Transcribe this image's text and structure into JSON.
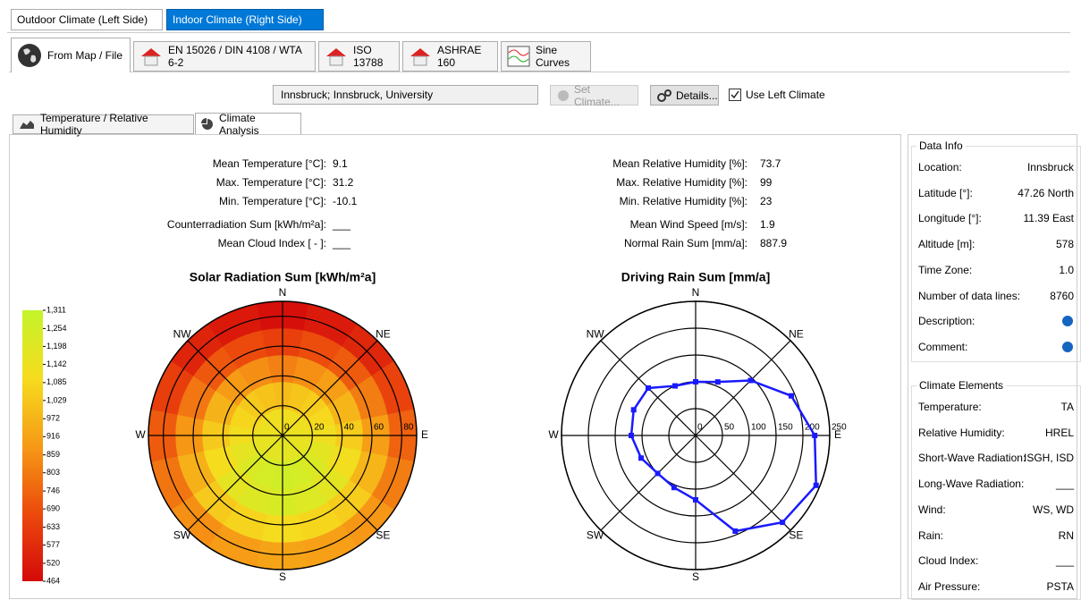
{
  "tabs_top": [
    "Outdoor Climate (Left Side)",
    "Indoor Climate (Right Side)"
  ],
  "tabs_source": [
    "From Map / File",
    "EN 15026 / DIN 4108 / WTA 6-2",
    "ISO 13788",
    "ASHRAE 160",
    "Sine Curves"
  ],
  "location_field": "Innsbruck; Innsbruck, University",
  "buttons": [
    "Set Climate...",
    "Details..."
  ],
  "checkbox": "Use Left Climate",
  "tabs_view": [
    "Temperature / Relative Humidity",
    "Climate Analysis"
  ],
  "stats_left": [
    {
      "label": "Mean Temperature [°C]:",
      "value": 9.1
    },
    {
      "label": "Max. Temperature [°C]:",
      "value": 31.2
    },
    {
      "label": "Min. Temperature [°C]:",
      "value": -10.1
    },
    {
      "label": "Counterradiation Sum [kWh/m²a]:",
      "value": "___"
    },
    {
      "label": "Mean Cloud Index [ - ]:",
      "value": "___"
    }
  ],
  "stats_right": [
    {
      "label": "Mean Relative Humidity [%]:",
      "value": 73.7
    },
    {
      "label": "Max. Relative Humidity [%]:",
      "value": 99
    },
    {
      "label": "Min. Relative Humidity [%]:",
      "value": 23
    },
    {
      "label": "Mean Wind Speed [m/s]:",
      "value": 1.9
    },
    {
      "label": "Normal Rain Sum [mm/a]:",
      "value": 887.9
    }
  ],
  "chart_data": [
    {
      "type": "polar_heatmap",
      "title": "Solar Radiation Sum [kWh/m²a]",
      "direction_labels": [
        "N",
        "NE",
        "E",
        "SE",
        "S",
        "SW",
        "W",
        "NW"
      ],
      "rlim": [
        0,
        90
      ],
      "rticks": [
        0,
        20,
        40,
        60,
        80
      ],
      "rbins": [
        0,
        18,
        36,
        54,
        72,
        90
      ],
      "values": [
        [
          1120,
          1125,
          1130,
          1140,
          1150,
          1160,
          1170,
          1180,
          1185,
          1180,
          1170,
          1160,
          1150,
          1140,
          1130,
          1125
        ],
        [
          1000,
          1025,
          1050,
          1090,
          1130,
          1175,
          1220,
          1245,
          1260,
          1245,
          1220,
          1170,
          1120,
          1080,
          1040,
          1020
        ],
        [
          820,
          860,
          900,
          975,
          1050,
          1115,
          1180,
          1210,
          1230,
          1205,
          1170,
          1105,
          1040,
          965,
          890,
          855
        ],
        [
          640,
          680,
          720,
          810,
          900,
          975,
          1050,
          1080,
          1100,
          1075,
          1040,
          960,
          880,
          795,
          710,
          675
        ],
        [
          480,
          520,
          560,
          650,
          740,
          810,
          880,
          905,
          920,
          895,
          860,
          790,
          720,
          635,
          550,
          515
        ]
      ],
      "clim": [
        464,
        1311
      ],
      "colors": [
        "#d40a0a",
        "#ec4a0c",
        "#f69a16",
        "#f6dc1e",
        "#c4f42a"
      ],
      "colorbar_ticks": [
        {
          "value": 1311,
          "label": "1,311"
        },
        {
          "value": 1254,
          "label": "1,254"
        },
        {
          "value": 1198,
          "label": "1,198"
        },
        {
          "value": 1142,
          "label": "1,142"
        },
        {
          "value": 1085,
          "label": "1,085"
        },
        {
          "value": 1029,
          "label": "1,029"
        },
        972,
        916,
        859,
        803,
        746,
        690,
        633,
        577,
        520,
        464
      ]
    },
    {
      "type": "polar_line",
      "title": "Driving Rain Sum [mm/a]",
      "direction_labels": [
        "N",
        "NE",
        "E",
        "SE",
        "S",
        "SW",
        "W",
        "NW"
      ],
      "rlim": [
        0,
        250
      ],
      "rticks": [
        0,
        50,
        100,
        150,
        200,
        250
      ],
      "values": [
        100,
        108,
        145,
        193,
        222,
        243,
        229,
        193,
        120,
        105,
        100,
        110,
        120,
        125,
        125,
        100
      ],
      "color": "#1a1aff"
    }
  ],
  "data_info": {
    "title": "Data Info",
    "rows": [
      {
        "label": "Location:",
        "value": "Innsbruck"
      },
      {
        "label": "Latitude [°]:",
        "value": "47.26 North"
      },
      {
        "label": "Longitude [°]:",
        "value": "11.39 East"
      },
      {
        "label": "Altitude [m]:",
        "value": "578"
      },
      {
        "label": "Time Zone:",
        "value": "1.0"
      },
      {
        "label": "Number of data lines:",
        "value": "8760"
      },
      {
        "label": "Description:"
      },
      {
        "label": "Comment:"
      }
    ]
  },
  "climate_elements": {
    "title": "Climate Elements",
    "rows": [
      {
        "label": "Temperature:",
        "value": "TA"
      },
      {
        "label": "Relative Humidity:",
        "value": "HREL"
      },
      {
        "label": "Short-Wave Radiation:",
        "value": "ISGH, ISD"
      },
      {
        "label": "Long-Wave Radiation:",
        "value": "___"
      },
      {
        "label": "Wind:",
        "value": "WS, WD"
      },
      {
        "label": "Rain:",
        "value": "RN"
      },
      {
        "label": "Cloud Index:",
        "value": "___"
      },
      {
        "label": "Air Pressure:",
        "value": "PSTA"
      }
    ]
  }
}
